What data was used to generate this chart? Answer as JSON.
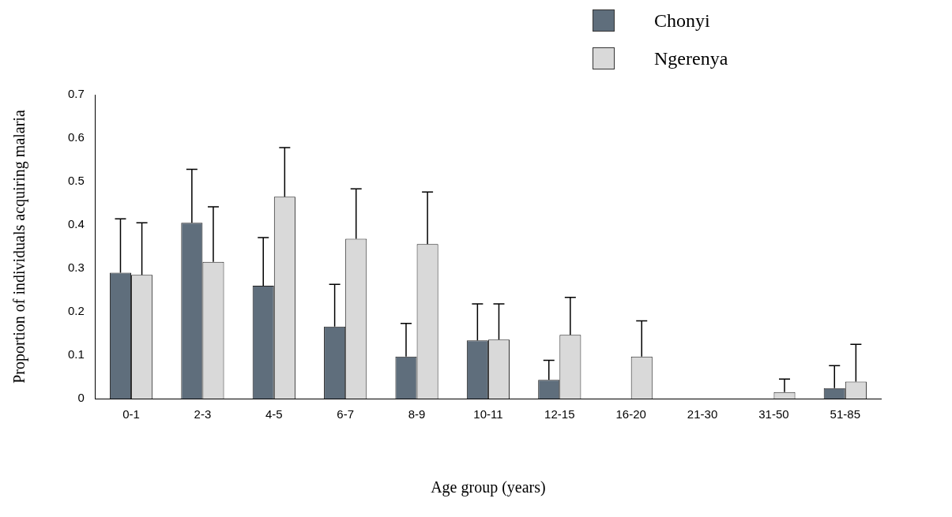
{
  "chart_data": {
    "type": "bar",
    "xlabel": "Age group (years)",
    "ylabel": "Proportion of individuals acquiring malaria",
    "categories": [
      "0-1",
      "2-3",
      "4-5",
      "6-7",
      "8-9",
      "10-11",
      "12-15",
      "16-20",
      "21-30",
      "31-50",
      "51-85"
    ],
    "series": [
      {
        "name": "Chonyi",
        "color": "#5f6e7c",
        "values": [
          0.29,
          0.405,
          0.26,
          0.166,
          0.097,
          0.134,
          0.043,
          0,
          0,
          0,
          0.024
        ],
        "errors": [
          [
            0.29,
            0.414
          ],
          [
            0.405,
            0.528
          ],
          [
            0.26,
            0.371
          ],
          [
            0.166,
            0.263
          ],
          [
            0.097,
            0.173
          ],
          [
            0.134,
            0.218
          ],
          [
            0.043,
            0.088
          ],
          null,
          null,
          null,
          [
            0.024,
            0.076
          ]
        ]
      },
      {
        "name": "Ngerenya",
        "color": "#d9d9d9",
        "values": [
          0.285,
          0.315,
          0.465,
          0.368,
          0.356,
          0.136,
          0.147,
          0.097,
          0,
          0.015,
          0.039
        ],
        "errors": [
          [
            0.285,
            0.405
          ],
          [
            0.315,
            0.442
          ],
          [
            0.465,
            0.578
          ],
          [
            0.368,
            0.483
          ],
          [
            0.356,
            0.476
          ],
          [
            0.136,
            0.218
          ],
          [
            0.147,
            0.233
          ],
          [
            0.097,
            0.179
          ],
          null,
          [
            0.015,
            0.045
          ],
          [
            0.039,
            0.125
          ]
        ]
      }
    ],
    "ylim": [
      0,
      0.7
    ],
    "yticks": [
      0,
      0.1,
      0.2,
      0.3,
      0.4,
      0.5,
      0.6,
      0.7
    ],
    "grid": false,
    "legend": "top right"
  }
}
